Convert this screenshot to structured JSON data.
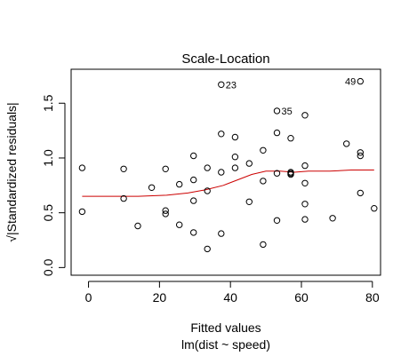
{
  "chart_data": {
    "type": "scatter",
    "title": "Scale-Location",
    "xlabel": "Fitted values",
    "sublabel": "lm(dist ~ speed)",
    "ylabel": "√|Standardized residuals|",
    "xlim": [
      -4.9,
      82.3
    ],
    "ylim": [
      -0.07,
      1.81
    ],
    "xticks": [
      0,
      20,
      40,
      60,
      80
    ],
    "yticks": [
      0.0,
      0.5,
      1.0,
      1.5
    ],
    "points": [
      [
        -1.8,
        0.91
      ],
      [
        -1.8,
        0.51
      ],
      [
        9.9,
        0.9
      ],
      [
        9.9,
        0.63
      ],
      [
        13.9,
        0.38
      ],
      [
        17.8,
        0.73
      ],
      [
        21.7,
        0.9
      ],
      [
        21.7,
        0.52
      ],
      [
        21.7,
        0.49
      ],
      [
        25.6,
        0.76
      ],
      [
        25.6,
        0.39
      ],
      [
        29.6,
        1.02
      ],
      [
        29.6,
        0.8
      ],
      [
        29.6,
        0.61
      ],
      [
        29.6,
        0.32
      ],
      [
        33.5,
        0.91
      ],
      [
        33.5,
        0.7
      ],
      [
        33.5,
        0.17
      ],
      [
        37.4,
        1.22
      ],
      [
        37.4,
        0.87
      ],
      [
        37.4,
        1.67
      ],
      [
        37.4,
        0.31
      ],
      [
        41.3,
        1.19
      ],
      [
        41.3,
        1.01
      ],
      [
        41.3,
        0.91
      ],
      [
        45.3,
        0.95
      ],
      [
        45.3,
        0.6
      ],
      [
        49.2,
        1.07
      ],
      [
        49.2,
        0.79
      ],
      [
        49.2,
        0.21
      ],
      [
        53.1,
        1.23
      ],
      [
        53.1,
        1.43
      ],
      [
        53.1,
        0.86
      ],
      [
        53.1,
        0.43
      ],
      [
        57.0,
        1.18
      ],
      [
        57.0,
        0.85
      ],
      [
        57.0,
        0.86
      ],
      [
        57.0,
        0.87
      ],
      [
        61.0,
        1.39
      ],
      [
        61.0,
        0.93
      ],
      [
        61.0,
        0.77
      ],
      [
        61.0,
        0.58
      ],
      [
        61.0,
        0.44
      ],
      [
        68.8,
        0.45
      ],
      [
        72.7,
        1.13
      ],
      [
        76.6,
        1.05
      ],
      [
        76.6,
        1.02
      ],
      [
        76.6,
        1.7
      ],
      [
        76.6,
        0.68
      ],
      [
        80.5,
        0.54
      ]
    ],
    "labeled_points": [
      {
        "label": "23",
        "x": 37.4,
        "y": 1.67,
        "side": "right"
      },
      {
        "label": "35",
        "x": 53.1,
        "y": 1.43,
        "side": "right"
      },
      {
        "label": "49",
        "x": 76.6,
        "y": 1.7,
        "side": "left"
      }
    ],
    "smooth_line": {
      "color": "#cc0000",
      "x": [
        -1.8,
        6,
        14,
        22,
        28,
        33,
        38,
        42,
        46,
        50,
        54,
        58,
        62,
        68,
        74,
        80.5
      ],
      "y": [
        0.65,
        0.65,
        0.65,
        0.66,
        0.68,
        0.71,
        0.75,
        0.8,
        0.85,
        0.88,
        0.88,
        0.87,
        0.88,
        0.88,
        0.89,
        0.89
      ]
    }
  }
}
